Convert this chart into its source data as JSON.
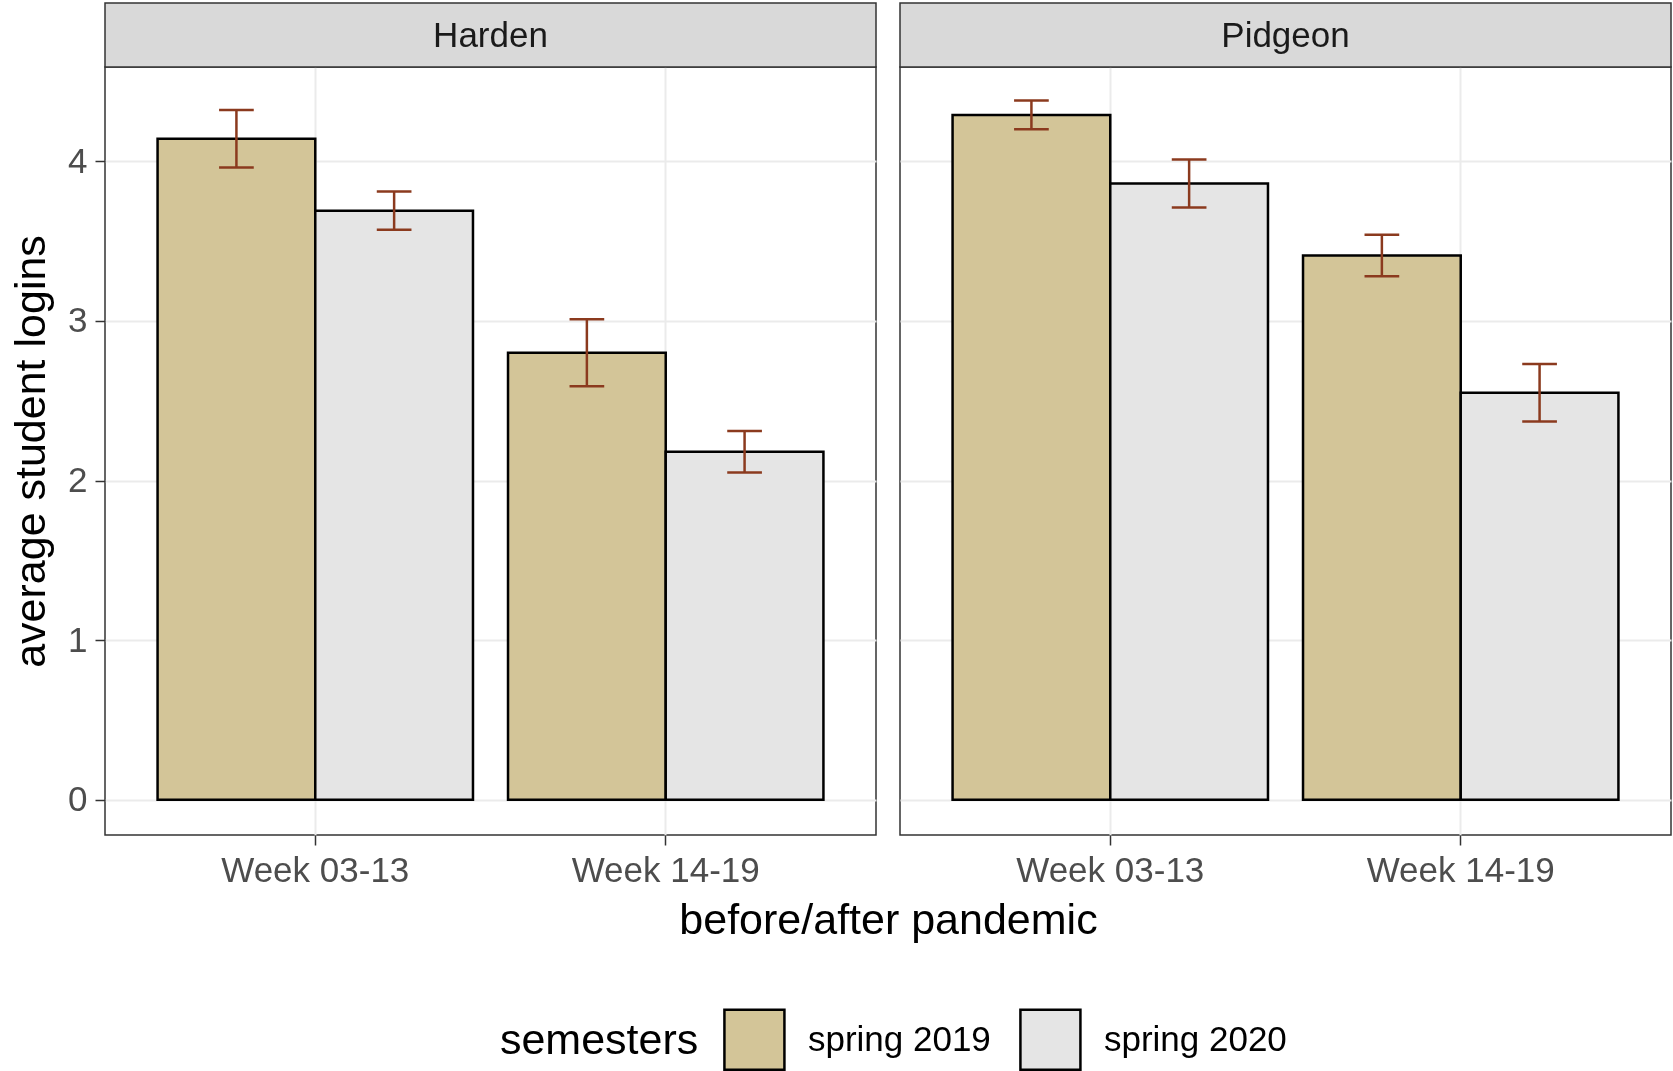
{
  "chart_data": [
    {
      "type": "bar",
      "title": "Harden",
      "xlabel": "before/after pandemic",
      "ylabel": "average student logins",
      "legend_title": "semesters",
      "categories": [
        "Week 03-13",
        "Week 14-19"
      ],
      "series": [
        {
          "name": "spring 2019",
          "color": "#d3c598",
          "values": [
            4.14,
            2.8
          ],
          "errors": [
            0.18,
            0.21
          ]
        },
        {
          "name": "spring 2020",
          "color": "#e5e5e5",
          "values": [
            3.69,
            2.18
          ],
          "errors": [
            0.12,
            0.13
          ]
        }
      ],
      "ylim": [
        -0.22,
        4.59
      ],
      "yticks": [
        0,
        1,
        2,
        3,
        4
      ],
      "grid": true,
      "legend": "bottom"
    },
    {
      "type": "bar",
      "title": "Pidgeon",
      "categories": [
        "Week 03-13",
        "Week 14-19"
      ],
      "series": [
        {
          "color": "#d3c598",
          "values": [
            4.29,
            3.41
          ],
          "errors": [
            0.09,
            0.13
          ]
        },
        {
          "color": "#e5e5e5",
          "values": [
            3.86,
            2.55
          ],
          "errors": [
            0.15,
            0.18
          ]
        }
      ],
      "ylim": [
        -0.22,
        4.59
      ],
      "yticks": [
        0,
        1,
        2,
        3,
        4
      ],
      "grid": true,
      "tick_labels": "x"
    }
  ]
}
